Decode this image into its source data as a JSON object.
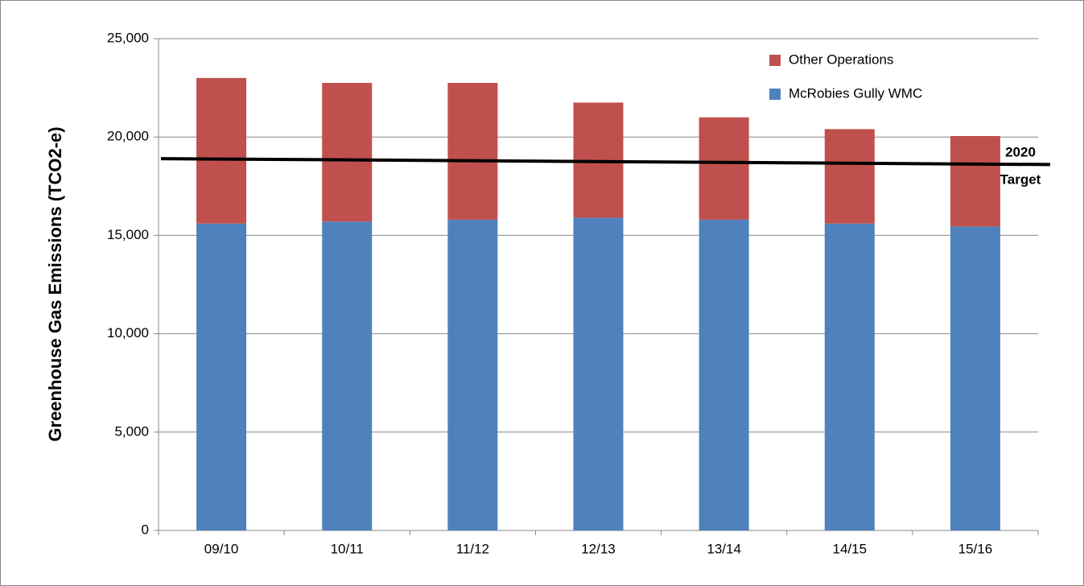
{
  "chart_data": {
    "type": "stacked_bar",
    "y_label": "Greenhouse Gas Emissions (TCO2-e)",
    "categories": [
      "09/10",
      "10/11",
      "11/12",
      "12/13",
      "13/14",
      "14/15",
      "15/16"
    ],
    "series": [
      {
        "name": "McRobies Gully WMC",
        "color": "#4f81bd",
        "values": [
          15600,
          15700,
          15800,
          15900,
          15800,
          15600,
          15450
        ]
      },
      {
        "name": "Other Operations",
        "color": "#c0504d",
        "values": [
          7400,
          7050,
          6950,
          5850,
          5200,
          4800,
          4600
        ]
      }
    ],
    "target": {
      "label": [
        "2020",
        "Target"
      ],
      "values": [
        18900,
        18600
      ],
      "color": "#000000"
    },
    "ylim": [
      0,
      25000
    ],
    "yticks": [
      0,
      {
        "value": 5000,
        "label": "5,000"
      },
      {
        "value": 10000,
        "label": "10,000"
      },
      {
        "value": 15000,
        "label": "15,000"
      },
      {
        "value": 20000,
        "label": "20,000"
      },
      {
        "value": 25000,
        "label": "25,000"
      }
    ],
    "grid": true,
    "legend": "top-right"
  }
}
